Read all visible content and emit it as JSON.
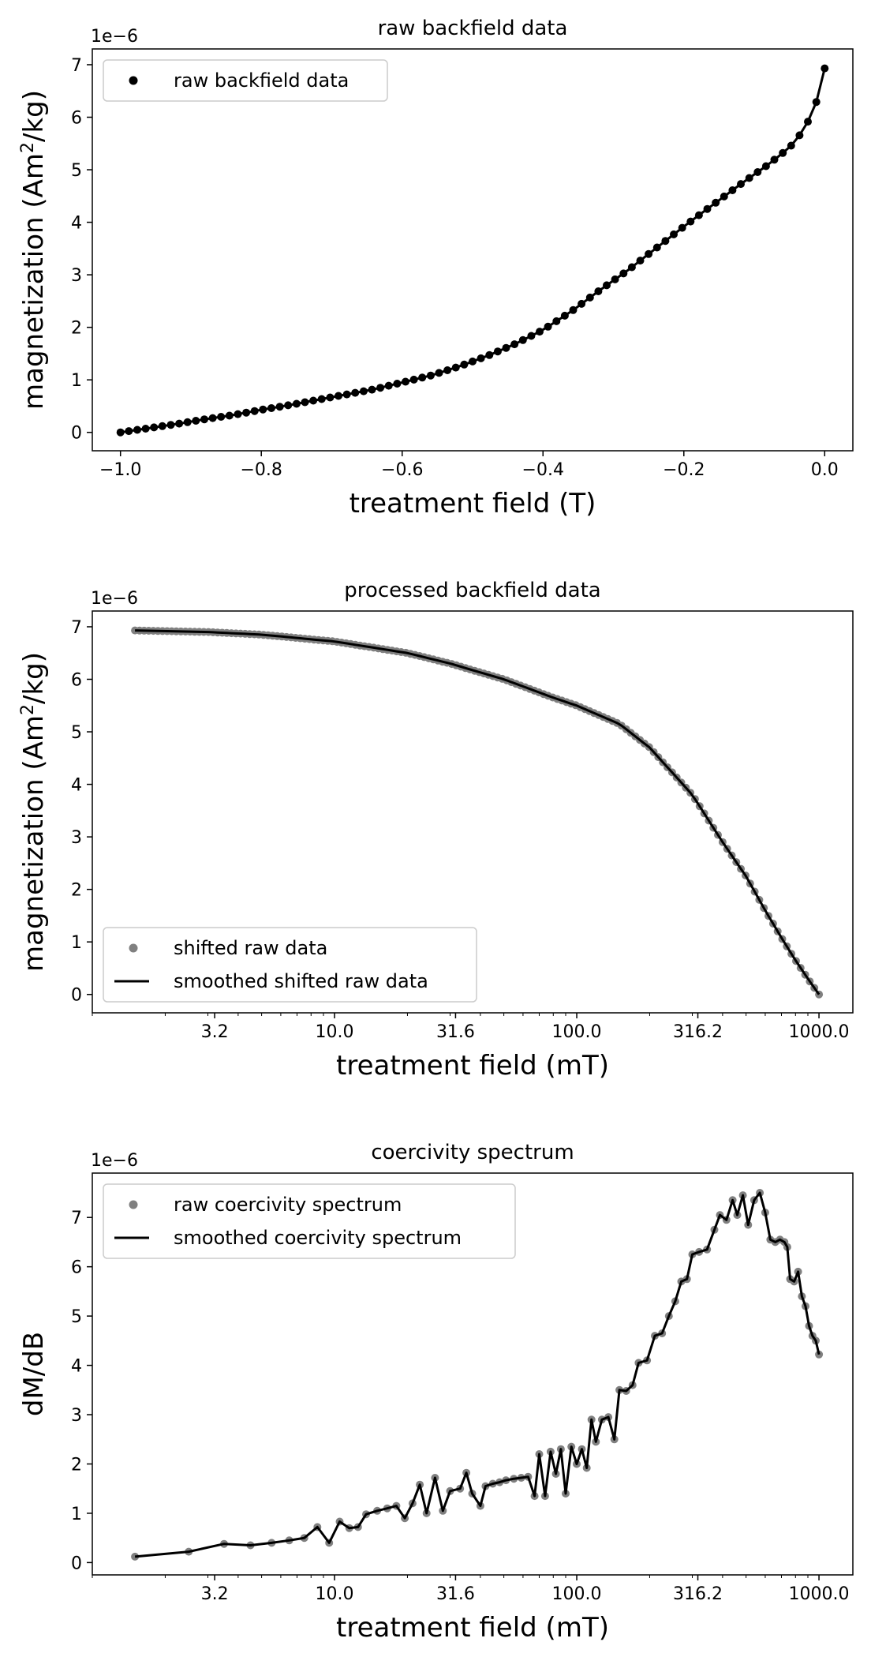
{
  "chart_data": [
    {
      "type": "scatter",
      "title": "raw backfield data",
      "xlabel": "treatment field (T)",
      "ylabel": "magnetization (Am²/kg)",
      "y_offset_text": "1e−6",
      "xlim": [
        -1.04,
        0.04
      ],
      "ylim": [
        -0.35,
        7.3
      ],
      "xticks": [
        -1.0,
        -0.8,
        -0.6,
        -0.4,
        -0.2,
        0.0
      ],
      "xtick_labels": [
        "−1.0",
        "−0.8",
        "−0.6",
        "−0.4",
        "−0.2",
        "0.0"
      ],
      "yticks": [
        0,
        1,
        2,
        3,
        4,
        5,
        6,
        7
      ],
      "ytick_labels": [
        "0",
        "1",
        "2",
        "3",
        "4",
        "5",
        "6",
        "7"
      ],
      "legend_position": "upper-left",
      "grid": false,
      "colors": {
        "points": "#000000",
        "line": "#000000"
      },
      "series": [
        {
          "name": "raw backfield data",
          "kind": "scatter+line",
          "curve": [
            [
              -1.0,
              0.0
            ],
            [
              -0.96,
              0.08
            ],
            [
              -0.92,
              0.16
            ],
            [
              -0.88,
              0.25
            ],
            [
              -0.84,
              0.33
            ],
            [
              -0.8,
              0.43
            ],
            [
              -0.76,
              0.52
            ],
            [
              -0.72,
              0.62
            ],
            [
              -0.68,
              0.72
            ],
            [
              -0.64,
              0.82
            ],
            [
              -0.6,
              0.95
            ],
            [
              -0.56,
              1.08
            ],
            [
              -0.52,
              1.25
            ],
            [
              -0.48,
              1.45
            ],
            [
              -0.44,
              1.68
            ],
            [
              -0.4,
              1.95
            ],
            [
              -0.36,
              2.3
            ],
            [
              -0.32,
              2.7
            ],
            [
              -0.28,
              3.08
            ],
            [
              -0.24,
              3.5
            ],
            [
              -0.2,
              3.92
            ],
            [
              -0.16,
              4.32
            ],
            [
              -0.12,
              4.72
            ],
            [
              -0.08,
              5.1
            ],
            [
              -0.05,
              5.42
            ],
            [
              -0.03,
              5.75
            ],
            [
              -0.015,
              6.15
            ],
            [
              -0.005,
              6.6
            ],
            [
              0.0,
              6.93
            ]
          ]
        }
      ]
    },
    {
      "type": "scatter",
      "title": "processed backfield data",
      "xlabel": "treatment field (mT)",
      "ylabel": "magnetization (Am²/kg)",
      "y_offset_text": "1e−6",
      "x_scale": "log",
      "xlim": [
        1.0,
        1380
      ],
      "ylim": [
        -0.35,
        7.3
      ],
      "xticks": [
        3.2,
        10.0,
        31.6,
        100.0,
        316.2,
        1000.0
      ],
      "xtick_labels": [
        "3.2",
        "10.0",
        "31.6",
        "100.0",
        "316.2",
        "1000.0"
      ],
      "yticks": [
        0,
        1,
        2,
        3,
        4,
        5,
        6,
        7
      ],
      "ytick_labels": [
        "0",
        "1",
        "2",
        "3",
        "4",
        "5",
        "6",
        "7"
      ],
      "legend_position": "lower-left",
      "grid": false,
      "colors": {
        "points": "#808080",
        "line": "#000000"
      },
      "series": [
        {
          "name": "shifted raw data",
          "kind": "scatter",
          "curve": [
            [
              1.5,
              6.93
            ],
            [
              3,
              6.9
            ],
            [
              5,
              6.85
            ],
            [
              10,
              6.72
            ],
            [
              20,
              6.5
            ],
            [
              30,
              6.3
            ],
            [
              50,
              6.0
            ],
            [
              80,
              5.65
            ],
            [
              100,
              5.5
            ],
            [
              150,
              5.15
            ],
            [
              200,
              4.7
            ],
            [
              300,
              3.8
            ],
            [
              400,
              2.9
            ],
            [
              500,
              2.25
            ],
            [
              600,
              1.6
            ],
            [
              700,
              1.08
            ],
            [
              800,
              0.65
            ],
            [
              900,
              0.3
            ],
            [
              1000,
              0.0
            ]
          ]
        },
        {
          "name": "smoothed shifted raw data",
          "kind": "line",
          "curve": [
            [
              1.5,
              6.93
            ],
            [
              3,
              6.9
            ],
            [
              5,
              6.85
            ],
            [
              10,
              6.72
            ],
            [
              20,
              6.5
            ],
            [
              30,
              6.3
            ],
            [
              50,
              6.0
            ],
            [
              80,
              5.65
            ],
            [
              100,
              5.5
            ],
            [
              150,
              5.15
            ],
            [
              200,
              4.7
            ],
            [
              300,
              3.8
            ],
            [
              400,
              2.9
            ],
            [
              500,
              2.25
            ],
            [
              600,
              1.6
            ],
            [
              700,
              1.08
            ],
            [
              800,
              0.65
            ],
            [
              900,
              0.3
            ],
            [
              1000,
              0.0
            ]
          ]
        }
      ]
    },
    {
      "type": "scatter",
      "title": "coercivity spectrum",
      "xlabel": "treatment field (mT)",
      "ylabel": "dM/dB",
      "y_offset_text": "1e−6",
      "x_scale": "log",
      "xlim": [
        1.0,
        1380
      ],
      "ylim": [
        -0.25,
        7.9
      ],
      "xticks": [
        3.2,
        10.0,
        31.6,
        100.0,
        316.2,
        1000.0
      ],
      "xtick_labels": [
        "3.2",
        "10.0",
        "31.6",
        "100.0",
        "316.2",
        "1000.0"
      ],
      "yticks": [
        0,
        1,
        2,
        3,
        4,
        5,
        6,
        7
      ],
      "ytick_labels": [
        "0",
        "1",
        "2",
        "3",
        "4",
        "5",
        "6",
        "7"
      ],
      "legend_position": "upper-left",
      "grid": false,
      "colors": {
        "points": "#808080",
        "line": "#000000"
      },
      "series": [
        {
          "name": "raw coercivity spectrum",
          "kind": "scatter",
          "points": [
            [
              1.5,
              0.12
            ],
            [
              2.5,
              0.22
            ],
            [
              3.5,
              0.38
            ],
            [
              4.5,
              0.35
            ],
            [
              5.5,
              0.4
            ],
            [
              6.5,
              0.45
            ],
            [
              7.5,
              0.5
            ],
            [
              8.5,
              0.72
            ],
            [
              9.5,
              0.4
            ],
            [
              10.5,
              0.83
            ],
            [
              11.5,
              0.7
            ],
            [
              12.5,
              0.72
            ],
            [
              13.5,
              0.98
            ],
            [
              15,
              1.05
            ],
            [
              16.5,
              1.1
            ],
            [
              18,
              1.15
            ],
            [
              19.5,
              0.9
            ],
            [
              21,
              1.2
            ],
            [
              22.5,
              1.58
            ],
            [
              24,
              1.0
            ],
            [
              26,
              1.72
            ],
            [
              28,
              1.05
            ],
            [
              30,
              1.45
            ],
            [
              33,
              1.5
            ],
            [
              35,
              1.82
            ],
            [
              37,
              1.4
            ],
            [
              40,
              1.15
            ],
            [
              42,
              1.55
            ],
            [
              45,
              1.6
            ],
            [
              48,
              1.63
            ],
            [
              51,
              1.67
            ],
            [
              55,
              1.7
            ],
            [
              59,
              1.72
            ],
            [
              63,
              1.74
            ],
            [
              67,
              1.35
            ],
            [
              70,
              2.2
            ],
            [
              74,
              1.35
            ],
            [
              78,
              2.25
            ],
            [
              82,
              1.8
            ],
            [
              86,
              2.3
            ],
            [
              90,
              1.4
            ],
            [
              95,
              2.35
            ],
            [
              100,
              2.0
            ],
            [
              105,
              2.3
            ],
            [
              110,
              1.92
            ],
            [
              115,
              2.9
            ],
            [
              120,
              2.45
            ],
            [
              127,
              2.9
            ],
            [
              135,
              2.95
            ],
            [
              143,
              2.5
            ],
            [
              150,
              3.5
            ],
            [
              160,
              3.48
            ],
            [
              170,
              3.6
            ],
            [
              180,
              4.05
            ],
            [
              195,
              4.1
            ],
            [
              210,
              4.6
            ],
            [
              225,
              4.65
            ],
            [
              240,
              5.0
            ],
            [
              255,
              5.3
            ],
            [
              270,
              5.7
            ],
            [
              285,
              5.75
            ],
            [
              300,
              6.25
            ],
            [
              320,
              6.3
            ],
            [
              345,
              6.35
            ],
            [
              370,
              6.75
            ],
            [
              390,
              7.05
            ],
            [
              415,
              6.95
            ],
            [
              440,
              7.35
            ],
            [
              460,
              7.05
            ],
            [
              485,
              7.45
            ],
            [
              510,
              6.85
            ],
            [
              540,
              7.35
            ],
            [
              570,
              7.5
            ],
            [
              600,
              7.1
            ],
            [
              630,
              6.55
            ],
            [
              660,
              6.5
            ],
            [
              690,
              6.55
            ],
            [
              720,
              6.5
            ],
            [
              740,
              6.4
            ],
            [
              760,
              5.75
            ],
            [
              790,
              5.7
            ],
            [
              820,
              5.9
            ],
            [
              850,
              5.4
            ],
            [
              880,
              5.2
            ],
            [
              910,
              4.8
            ],
            [
              940,
              4.6
            ],
            [
              970,
              4.5
            ],
            [
              1000,
              4.22
            ]
          ]
        },
        {
          "name": "smoothed coercivity spectrum",
          "kind": "line",
          "points": [
            [
              1.5,
              0.12
            ],
            [
              2.5,
              0.22
            ],
            [
              3.5,
              0.38
            ],
            [
              4.5,
              0.35
            ],
            [
              5.5,
              0.4
            ],
            [
              6.5,
              0.45
            ],
            [
              7.5,
              0.5
            ],
            [
              8.5,
              0.72
            ],
            [
              9.5,
              0.4
            ],
            [
              10.5,
              0.83
            ],
            [
              11.5,
              0.7
            ],
            [
              12.5,
              0.72
            ],
            [
              13.5,
              0.98
            ],
            [
              15,
              1.05
            ],
            [
              16.5,
              1.1
            ],
            [
              18,
              1.15
            ],
            [
              19.5,
              0.9
            ],
            [
              21,
              1.2
            ],
            [
              22.5,
              1.58
            ],
            [
              24,
              1.0
            ],
            [
              26,
              1.72
            ],
            [
              28,
              1.05
            ],
            [
              30,
              1.45
            ],
            [
              33,
              1.5
            ],
            [
              35,
              1.82
            ],
            [
              37,
              1.4
            ],
            [
              40,
              1.15
            ],
            [
              42,
              1.55
            ],
            [
              45,
              1.6
            ],
            [
              48,
              1.63
            ],
            [
              51,
              1.67
            ],
            [
              55,
              1.7
            ],
            [
              59,
              1.72
            ],
            [
              63,
              1.74
            ],
            [
              67,
              1.35
            ],
            [
              70,
              2.2
            ],
            [
              74,
              1.35
            ],
            [
              78,
              2.25
            ],
            [
              82,
              1.8
            ],
            [
              86,
              2.3
            ],
            [
              90,
              1.4
            ],
            [
              95,
              2.35
            ],
            [
              100,
              2.0
            ],
            [
              105,
              2.3
            ],
            [
              110,
              1.92
            ],
            [
              115,
              2.9
            ],
            [
              120,
              2.45
            ],
            [
              127,
              2.9
            ],
            [
              135,
              2.95
            ],
            [
              143,
              2.5
            ],
            [
              150,
              3.5
            ],
            [
              160,
              3.48
            ],
            [
              170,
              3.6
            ],
            [
              180,
              4.05
            ],
            [
              195,
              4.1
            ],
            [
              210,
              4.6
            ],
            [
              225,
              4.65
            ],
            [
              240,
              5.0
            ],
            [
              255,
              5.3
            ],
            [
              270,
              5.7
            ],
            [
              285,
              5.75
            ],
            [
              300,
              6.25
            ],
            [
              320,
              6.3
            ],
            [
              345,
              6.35
            ],
            [
              370,
              6.75
            ],
            [
              390,
              7.05
            ],
            [
              415,
              6.95
            ],
            [
              440,
              7.35
            ],
            [
              460,
              7.05
            ],
            [
              485,
              7.45
            ],
            [
              510,
              6.85
            ],
            [
              540,
              7.35
            ],
            [
              570,
              7.5
            ],
            [
              600,
              7.1
            ],
            [
              630,
              6.55
            ],
            [
              660,
              6.5
            ],
            [
              690,
              6.55
            ],
            [
              720,
              6.5
            ],
            [
              740,
              6.4
            ],
            [
              760,
              5.75
            ],
            [
              790,
              5.7
            ],
            [
              820,
              5.9
            ],
            [
              850,
              5.4
            ],
            [
              880,
              5.2
            ],
            [
              910,
              4.8
            ],
            [
              940,
              4.6
            ],
            [
              970,
              4.5
            ],
            [
              1000,
              4.22
            ]
          ]
        }
      ]
    }
  ]
}
